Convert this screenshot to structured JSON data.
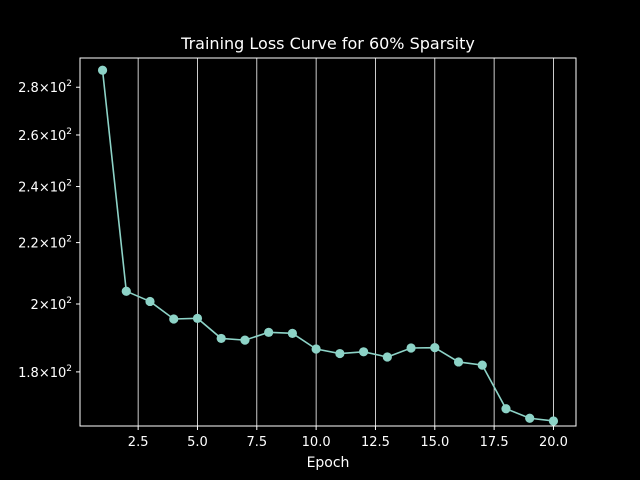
{
  "chart_data": {
    "type": "line",
    "title": "Training Loss Curve for 60% Sparsity",
    "xlabel": "Epoch",
    "ylabel": "",
    "xlim": [
      0.05,
      20.95
    ],
    "ylim": [
      165.5,
      293
    ],
    "yscale": "log",
    "grid": "vertical lines only",
    "x_ticks": [
      {
        "value": 2.5,
        "label": "2.5"
      },
      {
        "value": 5.0,
        "label": "5.0"
      },
      {
        "value": 7.5,
        "label": "7.5"
      },
      {
        "value": 10.0,
        "label": "10.0"
      },
      {
        "value": 12.5,
        "label": "12.5"
      },
      {
        "value": 15.0,
        "label": "15.0"
      },
      {
        "value": 17.5,
        "label": "17.5"
      },
      {
        "value": 20.0,
        "label": "20.0"
      }
    ],
    "y_ticks": [
      {
        "value": 180,
        "mantissa": "1.8"
      },
      {
        "value": 200,
        "mantissa": "2"
      },
      {
        "value": 220,
        "mantissa": "2.2"
      },
      {
        "value": 240,
        "mantissa": "2.4"
      },
      {
        "value": 260,
        "mantissa": "2.6"
      },
      {
        "value": 280,
        "mantissa": "2.8"
      }
    ],
    "series": [
      {
        "color": "#8dd3c7",
        "x": [
          1,
          2,
          3,
          4,
          5,
          6,
          7,
          8,
          9,
          10,
          11,
          12,
          13,
          14,
          15,
          16,
          17,
          18,
          19,
          20
        ],
        "y": [
          287.5,
          204.0,
          200.8,
          195.4,
          195.6,
          189.6,
          189.1,
          191.4,
          191.1,
          186.5,
          185.2,
          185.7,
          184.2,
          186.8,
          186.9,
          182.8,
          181.9,
          170.0,
          167.5,
          166.8
        ]
      }
    ]
  }
}
